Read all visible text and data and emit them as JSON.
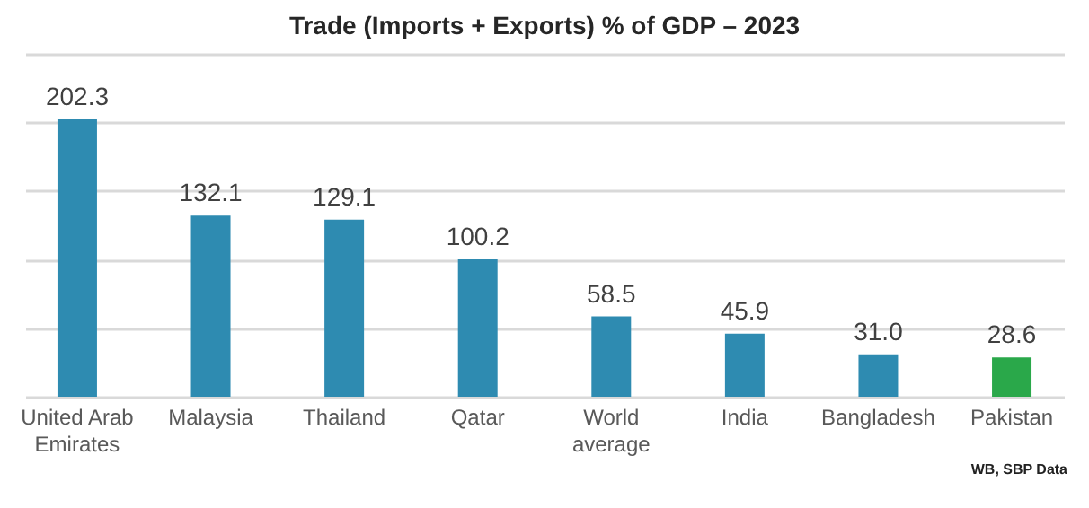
{
  "chart_data": {
    "type": "bar",
    "title": "Trade (Imports + Exports) % of GDP – 2023",
    "categories": [
      "United Arab Emirates",
      "Malaysia",
      "Thailand",
      "Qatar",
      "World average",
      "India",
      "Bangladesh",
      "Pakistan"
    ],
    "values": [
      202.3,
      132.1,
      129.1,
      100.2,
      58.5,
      45.9,
      31.0,
      28.6
    ],
    "colors": [
      "#2e8bb1",
      "#2e8bb1",
      "#2e8bb1",
      "#2e8bb1",
      "#2e8bb1",
      "#2e8bb1",
      "#2e8bb1",
      "#2aa84a"
    ],
    "value_labels": [
      "202.3",
      "132.1",
      "129.1",
      "100.2",
      "58.5",
      "45.9",
      "31.0",
      "28.6"
    ],
    "tick_labels": "x",
    "grid": "y",
    "annotations": [
      "WB, SBP Data"
    ]
  }
}
